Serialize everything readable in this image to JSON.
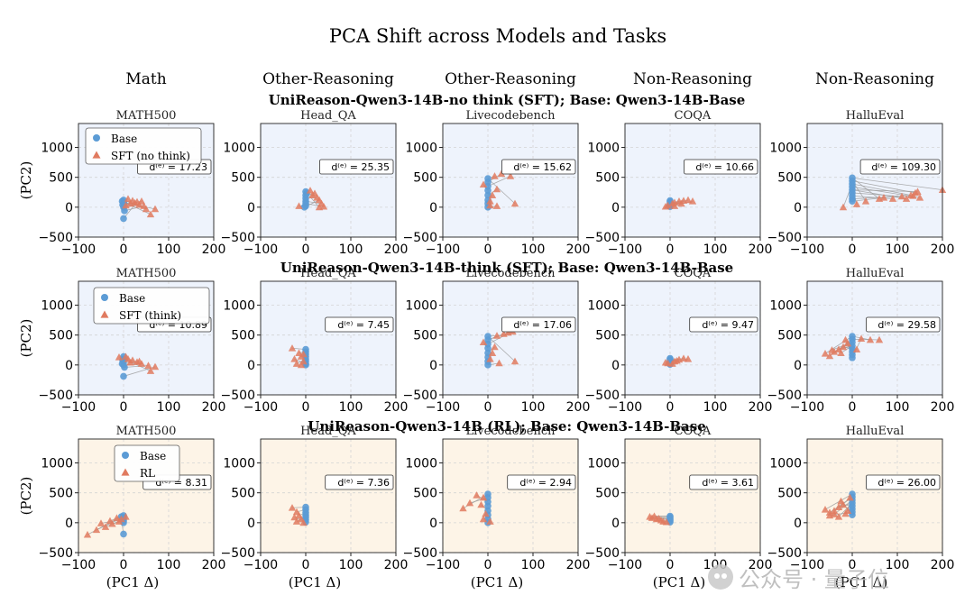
{
  "figure_title": "PCA Shift across Models and Tasks",
  "column_categories": [
    "Math",
    "Other-Reasoning",
    "Other-Reasoning",
    "Non-Reasoning",
    "Non-Reasoning"
  ],
  "row_titles": [
    "UniReason-Qwen3-14B-no think (SFT); Base: Qwen3-14B-Base",
    "UniReason-Qwen3-14B-think (SFT); Base: Qwen3-14B-Base",
    "UniReason-Qwen3-14B (RL); Base: Qwen3-14B-Base"
  ],
  "task_titles": [
    "MATH500",
    "Head_QA",
    "Livecodebench",
    "COQA",
    "HalluEval"
  ],
  "axis": {
    "xlabel": "(PC1 Δ)",
    "ylabel": "(PC2)",
    "xlim": [
      -100,
      200
    ],
    "ylim": [
      -500,
      1400
    ],
    "xticks": [
      -100,
      0,
      100,
      200
    ],
    "yticks": [
      -500,
      0,
      500,
      1000
    ]
  },
  "legends": [
    {
      "base": "Base",
      "other": "SFT (no think)"
    },
    {
      "base": "Base",
      "other": "SFT (think)"
    },
    {
      "base": "Base",
      "other": "RL"
    }
  ],
  "watermark": {
    "text": "公众号 · 量子位",
    "icon": "wechat-icon"
  },
  "colors": {
    "base": "#5b9bd5",
    "shifted": "#e07a5f",
    "row_bg_sft": "#eef3fc",
    "row_bg_rl": "#fdf4e7",
    "link": "#9a9a9a"
  },
  "chart_data": [
    {
      "type": "scatter",
      "row": 0,
      "col": 0,
      "task": "MATH500",
      "d_label": "d⁽ᵉ⁾ = 17.23",
      "base": [
        [
          0,
          120
        ],
        [
          0,
          80
        ],
        [
          -2,
          40
        ],
        [
          0,
          0
        ],
        [
          2,
          -60
        ],
        [
          0,
          -190
        ],
        [
          -3,
          100
        ],
        [
          1,
          60
        ]
      ],
      "shifted": [
        [
          10,
          140
        ],
        [
          20,
          110
        ],
        [
          25,
          70
        ],
        [
          35,
          40
        ],
        [
          45,
          20
        ],
        [
          30,
          90
        ],
        [
          60,
          -120
        ],
        [
          15,
          60
        ],
        [
          50,
          -30
        ],
        [
          70,
          -30
        ],
        [
          40,
          100
        ],
        [
          5,
          30
        ]
      ]
    },
    {
      "type": "scatter",
      "row": 0,
      "col": 1,
      "task": "Head_QA",
      "d_label": "d⁽ᵉ⁾ = 25.35",
      "base": [
        [
          0,
          260
        ],
        [
          0,
          200
        ],
        [
          0,
          150
        ],
        [
          0,
          100
        ],
        [
          0,
          60
        ],
        [
          0,
          20
        ],
        [
          -3,
          0
        ],
        [
          2,
          230
        ]
      ],
      "shifted": [
        [
          10,
          280
        ],
        [
          20,
          230
        ],
        [
          25,
          160
        ],
        [
          35,
          60
        ],
        [
          40,
          10
        ],
        [
          -15,
          20
        ],
        [
          30,
          120
        ],
        [
          15,
          200
        ],
        [
          30,
          0
        ]
      ]
    },
    {
      "type": "scatter",
      "row": 0,
      "col": 2,
      "task": "Livecodebench",
      "d_label": "d⁽ᵉ⁾ = 15.62",
      "base": [
        [
          0,
          480
        ],
        [
          0,
          420
        ],
        [
          0,
          350
        ],
        [
          0,
          280
        ],
        [
          0,
          200
        ],
        [
          0,
          120
        ],
        [
          0,
          60
        ],
        [
          0,
          0
        ]
      ],
      "shifted": [
        [
          15,
          520
        ],
        [
          30,
          560
        ],
        [
          50,
          520
        ],
        [
          -10,
          380
        ],
        [
          20,
          300
        ],
        [
          10,
          200
        ],
        [
          5,
          100
        ],
        [
          20,
          20
        ],
        [
          60,
          60
        ],
        [
          5,
          30
        ]
      ]
    },
    {
      "type": "scatter",
      "row": 0,
      "col": 3,
      "task": "COQA",
      "d_label": "d⁽ᵉ⁾ = 10.66",
      "base": [
        [
          0,
          110
        ],
        [
          0,
          90
        ],
        [
          0,
          70
        ],
        [
          0,
          50
        ],
        [
          0,
          30
        ],
        [
          0,
          10
        ]
      ],
      "shifted": [
        [
          5,
          60
        ],
        [
          10,
          80
        ],
        [
          20,
          100
        ],
        [
          30,
          110
        ],
        [
          40,
          120
        ],
        [
          50,
          100
        ],
        [
          -5,
          30
        ],
        [
          10,
          20
        ],
        [
          25,
          60
        ],
        [
          -10,
          10
        ]
      ]
    },
    {
      "type": "scatter",
      "row": 0,
      "col": 4,
      "task": "HalluEval",
      "d_label": "d⁽ᵉ⁾ = 109.30",
      "base": [
        [
          0,
          490
        ],
        [
          0,
          440
        ],
        [
          0,
          390
        ],
        [
          0,
          340
        ],
        [
          0,
          290
        ],
        [
          0,
          240
        ],
        [
          0,
          190
        ],
        [
          0,
          140
        ],
        [
          0,
          100
        ]
      ],
      "shifted": [
        [
          200,
          290
        ],
        [
          140,
          240
        ],
        [
          130,
          200
        ],
        [
          150,
          160
        ],
        [
          120,
          140
        ],
        [
          110,
          180
        ],
        [
          90,
          140
        ],
        [
          135,
          190
        ],
        [
          70,
          160
        ],
        [
          60,
          140
        ],
        [
          30,
          100
        ],
        [
          -20,
          0
        ],
        [
          10,
          50
        ],
        [
          145,
          260
        ]
      ]
    },
    {
      "type": "scatter",
      "row": 1,
      "col": 0,
      "task": "MATH500",
      "d_label": "d⁽ᵉ⁾ = 10.89",
      "base": [
        [
          0,
          140
        ],
        [
          0,
          100
        ],
        [
          0,
          60
        ],
        [
          -3,
          20
        ],
        [
          0,
          0
        ],
        [
          2,
          -40
        ],
        [
          0,
          -190
        ],
        [
          -2,
          80
        ]
      ],
      "shifted": [
        [
          -10,
          130
        ],
        [
          5,
          140
        ],
        [
          20,
          80
        ],
        [
          30,
          50
        ],
        [
          40,
          20
        ],
        [
          55,
          -10
        ],
        [
          70,
          -30
        ],
        [
          10,
          100
        ],
        [
          15,
          40
        ],
        [
          60,
          -100
        ],
        [
          35,
          60
        ]
      ]
    },
    {
      "type": "scatter",
      "row": 1,
      "col": 1,
      "task": "Head_QA",
      "d_label": "d⁽ᵉ⁾ = 7.45",
      "base": [
        [
          0,
          260
        ],
        [
          0,
          220
        ],
        [
          0,
          180
        ],
        [
          0,
          140
        ],
        [
          0,
          100
        ],
        [
          0,
          60
        ],
        [
          0,
          20
        ],
        [
          0,
          0
        ]
      ],
      "shifted": [
        [
          -30,
          280
        ],
        [
          -15,
          200
        ],
        [
          -10,
          140
        ],
        [
          -5,
          60
        ],
        [
          -20,
          20
        ],
        [
          -10,
          0
        ],
        [
          -25,
          100
        ],
        [
          -5,
          180
        ]
      ]
    },
    {
      "type": "scatter",
      "row": 1,
      "col": 2,
      "task": "Livecodebench",
      "d_label": "d⁽ᵉ⁾ = 17.06",
      "base": [
        [
          0,
          480
        ],
        [
          0,
          420
        ],
        [
          0,
          350
        ],
        [
          0,
          280
        ],
        [
          0,
          200
        ],
        [
          0,
          130
        ],
        [
          0,
          60
        ],
        [
          0,
          0
        ]
      ],
      "shifted": [
        [
          20,
          490
        ],
        [
          35,
          520
        ],
        [
          55,
          560
        ],
        [
          -10,
          380
        ],
        [
          15,
          300
        ],
        [
          10,
          200
        ],
        [
          5,
          100
        ],
        [
          25,
          30
        ],
        [
          60,
          60
        ],
        [
          45,
          540
        ]
      ]
    },
    {
      "type": "scatter",
      "row": 1,
      "col": 3,
      "task": "COQA",
      "d_label": "d⁽ᵉ⁾ = 9.47",
      "base": [
        [
          0,
          110
        ],
        [
          0,
          90
        ],
        [
          0,
          70
        ],
        [
          0,
          50
        ],
        [
          0,
          30
        ],
        [
          0,
          10
        ]
      ],
      "shifted": [
        [
          10,
          60
        ],
        [
          20,
          90
        ],
        [
          30,
          110
        ],
        [
          40,
          100
        ],
        [
          -5,
          30
        ],
        [
          5,
          20
        ],
        [
          15,
          70
        ],
        [
          -10,
          40
        ]
      ]
    },
    {
      "type": "scatter",
      "row": 1,
      "col": 4,
      "task": "HalluEval",
      "d_label": "d⁽ᵉ⁾ = 29.58",
      "base": [
        [
          0,
          480
        ],
        [
          0,
          430
        ],
        [
          0,
          380
        ],
        [
          0,
          320
        ],
        [
          0,
          270
        ],
        [
          0,
          220
        ],
        [
          0,
          170
        ],
        [
          0,
          120
        ]
      ],
      "shifted": [
        [
          -60,
          190
        ],
        [
          -50,
          150
        ],
        [
          -40,
          220
        ],
        [
          -30,
          260
        ],
        [
          -20,
          300
        ],
        [
          -10,
          360
        ],
        [
          -15,
          420
        ],
        [
          20,
          440
        ],
        [
          40,
          420
        ],
        [
          60,
          420
        ],
        [
          -45,
          250
        ],
        [
          -25,
          200
        ],
        [
          10,
          260
        ]
      ]
    },
    {
      "type": "scatter",
      "row": 2,
      "col": 0,
      "task": "MATH500",
      "d_label": "d⁽ᵉ⁾ = 8.31",
      "base": [
        [
          0,
          120
        ],
        [
          0,
          90
        ],
        [
          0,
          60
        ],
        [
          0,
          30
        ],
        [
          0,
          0
        ],
        [
          0,
          -190
        ],
        [
          -5,
          100
        ]
      ],
      "shifted": [
        [
          -80,
          -200
        ],
        [
          -60,
          -120
        ],
        [
          -40,
          -70
        ],
        [
          -25,
          -20
        ],
        [
          -10,
          20
        ],
        [
          -5,
          60
        ],
        [
          5,
          100
        ],
        [
          -30,
          30
        ],
        [
          -15,
          80
        ],
        [
          -50,
          -10
        ]
      ]
    },
    {
      "type": "scatter",
      "row": 2,
      "col": 1,
      "task": "Head_QA",
      "d_label": "d⁽ᵉ⁾ = 7.36",
      "base": [
        [
          0,
          260
        ],
        [
          0,
          220
        ],
        [
          0,
          170
        ],
        [
          0,
          130
        ],
        [
          0,
          90
        ],
        [
          0,
          50
        ],
        [
          0,
          10
        ]
      ],
      "shifted": [
        [
          -30,
          250
        ],
        [
          -20,
          180
        ],
        [
          -15,
          120
        ],
        [
          -10,
          60
        ],
        [
          -20,
          20
        ],
        [
          -5,
          0
        ],
        [
          -25,
          90
        ]
      ]
    },
    {
      "type": "scatter",
      "row": 2,
      "col": 2,
      "task": "Livecodebench",
      "d_label": "d⁽ᵉ⁾ = 2.94",
      "base": [
        [
          0,
          480
        ],
        [
          0,
          420
        ],
        [
          0,
          350
        ],
        [
          0,
          280
        ],
        [
          0,
          200
        ],
        [
          0,
          130
        ],
        [
          0,
          60
        ],
        [
          0,
          0
        ]
      ],
      "shifted": [
        [
          -55,
          240
        ],
        [
          -40,
          330
        ],
        [
          -25,
          460
        ],
        [
          -10,
          420
        ],
        [
          -15,
          300
        ],
        [
          -5,
          150
        ],
        [
          -10,
          60
        ],
        [
          5,
          20
        ]
      ]
    },
    {
      "type": "scatter",
      "row": 2,
      "col": 3,
      "task": "COQA",
      "d_label": "d⁽ᵉ⁾ = 3.61",
      "base": [
        [
          0,
          110
        ],
        [
          0,
          90
        ],
        [
          0,
          70
        ],
        [
          0,
          50
        ],
        [
          0,
          30
        ],
        [
          0,
          10
        ]
      ],
      "shifted": [
        [
          -45,
          100
        ],
        [
          -40,
          80
        ],
        [
          -30,
          60
        ],
        [
          -20,
          40
        ],
        [
          -15,
          20
        ],
        [
          -8,
          10
        ],
        [
          -35,
          110
        ],
        [
          -25,
          70
        ]
      ]
    },
    {
      "type": "scatter",
      "row": 2,
      "col": 4,
      "task": "HalluEval",
      "d_label": "d⁽ᵉ⁾ = 26.00",
      "base": [
        [
          0,
          480
        ],
        [
          0,
          430
        ],
        [
          0,
          380
        ],
        [
          0,
          330
        ],
        [
          0,
          280
        ],
        [
          0,
          230
        ],
        [
          0,
          180
        ],
        [
          0,
          130
        ]
      ],
      "shifted": [
        [
          -60,
          220
        ],
        [
          -50,
          170
        ],
        [
          -40,
          140
        ],
        [
          -30,
          260
        ],
        [
          -20,
          300
        ],
        [
          -10,
          200
        ],
        [
          -50,
          120
        ],
        [
          -25,
          360
        ],
        [
          -5,
          420
        ],
        [
          -40,
          200
        ],
        [
          -15,
          150
        ],
        [
          -30,
          100
        ]
      ]
    }
  ]
}
